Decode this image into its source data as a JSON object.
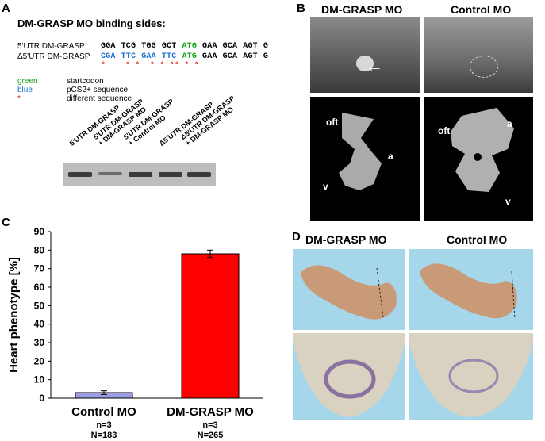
{
  "panels": {
    "A": "A",
    "B": "B",
    "C": "C",
    "D": "D"
  },
  "panelA": {
    "title": "DM-GRASP MO binding sides:",
    "rows": [
      {
        "name": "5'UTR DM-GRASP",
        "codons": [
          {
            "text": "GGA",
            "color": "#000000"
          },
          {
            "text": "TCG",
            "color": "#000000"
          },
          {
            "text": "TGG",
            "color": "#000000"
          },
          {
            "text": "GCT",
            "color": "#000000"
          },
          {
            "text": "ATG",
            "color": "#1aa31a"
          },
          {
            "text": "GAA",
            "color": "#000000"
          },
          {
            "text": "GCA",
            "color": "#000000"
          },
          {
            "text": "AGT",
            "color": "#000000"
          },
          {
            "text": "G",
            "color": "#000000"
          }
        ]
      },
      {
        "name": "Δ5'UTR DM-GRASP",
        "codons": [
          {
            "text": "CGA",
            "color": "#1a6fd0"
          },
          {
            "text": "TTC",
            "color": "#1a6fd0"
          },
          {
            "text": "GAA",
            "color": "#1a6fd0"
          },
          {
            "text": "TTC",
            "color": "#1a6fd0"
          },
          {
            "text": "ATG",
            "color": "#1aa31a"
          },
          {
            "text": "GAA",
            "color": "#000000"
          },
          {
            "text": "GCA",
            "color": "#000000"
          },
          {
            "text": "AGT",
            "color": "#000000"
          },
          {
            "text": "G",
            "color": "#000000"
          }
        ]
      }
    ],
    "stars": [
      "*",
      "* *",
      "* * *",
      "* * *"
    ],
    "legend": [
      {
        "key": "green",
        "desc": "startcodon",
        "color": "#1aa31a"
      },
      {
        "key": "blue",
        "desc": "pCS2+ sequence",
        "color": "#1a6fd0"
      },
      {
        "key": "*",
        "desc": "different sequence",
        "color": "#e02020"
      }
    ],
    "lanes": [
      "5'UTR DM-GRASP",
      "5'UTR DM-GRASP\n+ DM-GRASP MO",
      "5'UTR DM-GRASP\n+ Control MO",
      "Δ5'UTR DM-GRASP",
      "Δ5'UTR DM-GRASP\n+ DM-GRASP MO"
    ]
  },
  "panelB": {
    "col_titles": [
      "DM-GRASP MO",
      "Control MO"
    ],
    "left_labels": {
      "oft": "oft",
      "a": "a",
      "v": "v"
    },
    "right_labels": {
      "oft": "oft",
      "a": "a",
      "v": "v"
    }
  },
  "panelD": {
    "col_titles": [
      "DM-GRASP MO",
      "Control MO"
    ]
  },
  "chart_data": {
    "type": "bar",
    "categories": [
      "Control MO",
      "DM-GRASP MO"
    ],
    "values": [
      3,
      78
    ],
    "errors": [
      1,
      2
    ],
    "colors": [
      "#9b9be6",
      "#ff0000"
    ],
    "ylabel": "Heart phenotype [%]",
    "ylim": [
      0,
      90
    ],
    "yticks": [
      0,
      10,
      20,
      30,
      40,
      50,
      60,
      70,
      80,
      90
    ],
    "annotations": [
      {
        "n": "n=3",
        "N": "N=183"
      },
      {
        "n": "n=3",
        "N": "N=265"
      }
    ]
  }
}
